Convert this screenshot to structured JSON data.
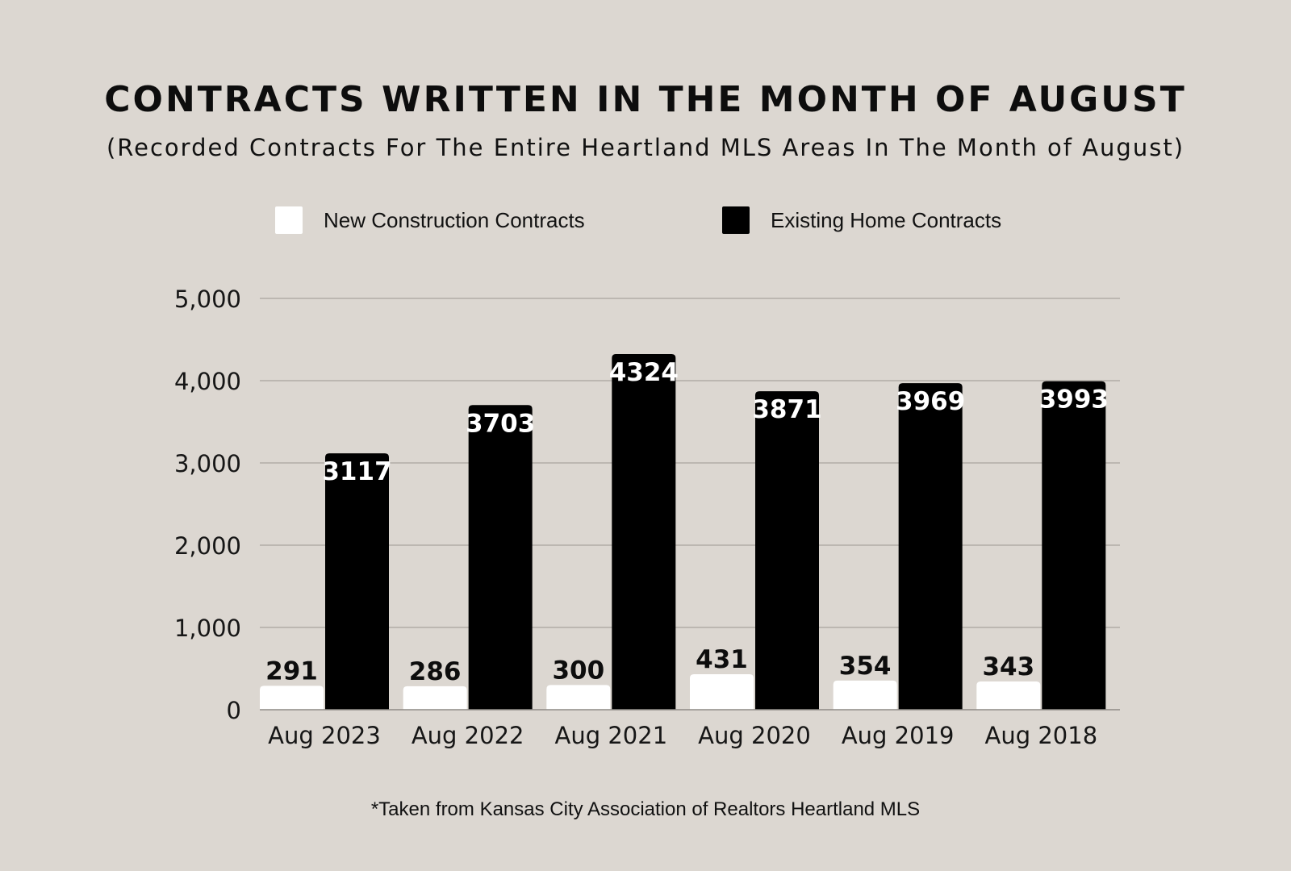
{
  "chart_data": {
    "type": "bar",
    "title": "CONTRACTS WRITTEN IN THE MONTH OF AUGUST",
    "subtitle": "(Recorded Contracts For The Entire Heartland MLS Areas In The Month of August)",
    "categories": [
      "Aug 2023",
      "Aug 2022",
      "Aug 2021",
      "Aug 2020",
      "Aug 2019",
      "Aug 2018"
    ],
    "series": [
      {
        "name": "New Construction Contracts",
        "color": "#ffffff",
        "label_color": "#0d0d0d",
        "values": [
          291,
          286,
          300,
          431,
          354,
          343
        ]
      },
      {
        "name": "Existing Home Contracts",
        "color": "#000000",
        "label_color": "#ffffff",
        "values": [
          3117,
          3703,
          4324,
          3871,
          3969,
          3993
        ]
      }
    ],
    "y_ticks": [
      0,
      1000,
      2000,
      3000,
      4000,
      5000
    ],
    "y_tick_labels": [
      "0",
      "1,000",
      "2,000",
      "3,000",
      "4,000",
      "5,000"
    ],
    "ylim": [
      0,
      5000
    ],
    "grid": true,
    "legend_position": "top",
    "xlabel": "",
    "ylabel": ""
  },
  "footnote": "*Taken from Kansas City Association of Realtors Heartland MLS",
  "colors": {
    "background": "#dcd7d1",
    "gridline": "#a9a49e",
    "axis": "#8e8a85"
  }
}
